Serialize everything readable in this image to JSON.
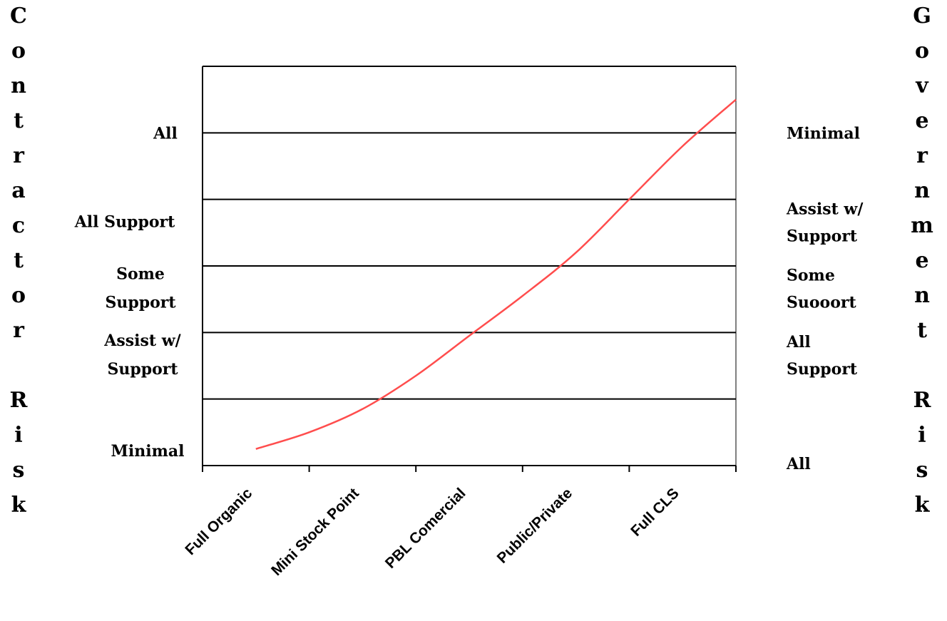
{
  "chart_data": {
    "type": "line",
    "left_axis_title": "Contractor Risk",
    "right_axis_title": "Government Risk",
    "categories": [
      "Full Organic",
      "Mini Stock Point",
      "PBL Comercial",
      "Public/Private",
      "Full CLS"
    ],
    "left_levels": [
      "Minimal",
      "Assist w/ Support",
      "Some Support",
      "All Support",
      "All"
    ],
    "right_levels": [
      "All",
      "All Support",
      "Some Suooort",
      "Assist w/ Support",
      "Minimal"
    ],
    "series": [
      {
        "color": "#ff4d4d",
        "x": [
          0.5,
          1,
          1.5,
          2,
          2.5,
          3,
          3.5,
          4,
          4.5,
          5
        ],
        "y": [
          0.25,
          0.5,
          0.85,
          1.35,
          1.95,
          2.55,
          3.2,
          4.0,
          4.8,
          5.5
        ]
      }
    ],
    "xlim": [
      0,
      5
    ],
    "ylim": [
      0,
      6
    ],
    "grid": true
  }
}
